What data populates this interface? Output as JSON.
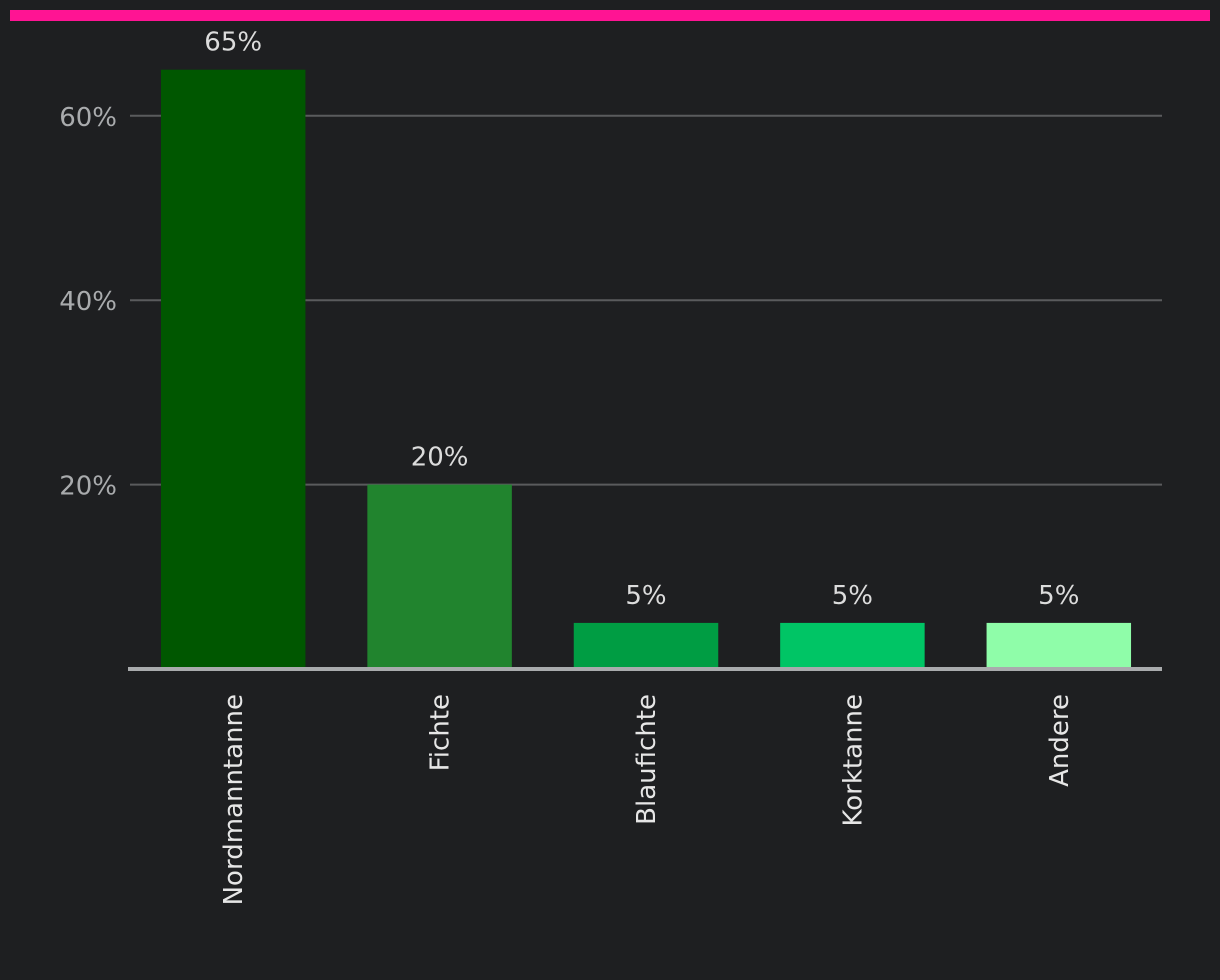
{
  "colors": {
    "accent": "#ff1493",
    "background": "#1e1f21",
    "bars": [
      "#005700",
      "#21842e",
      "#009d43",
      "#00c565",
      "#8ffda9"
    ]
  },
  "chart_data": {
    "type": "bar",
    "categories": [
      "Nordmanntanne",
      "Fichte",
      "Blaufichte",
      "Korktanne",
      "Andere"
    ],
    "values": [
      65,
      20,
      5,
      5,
      5
    ],
    "value_labels": [
      "65%",
      "20%",
      "5%",
      "5%",
      "5%"
    ],
    "yticks": [
      20,
      40,
      60
    ],
    "ytick_labels": [
      "20%",
      "40%",
      "60%"
    ],
    "ylim": [
      0,
      68
    ],
    "grid": true,
    "title": "",
    "xlabel": "",
    "ylabel": ""
  }
}
